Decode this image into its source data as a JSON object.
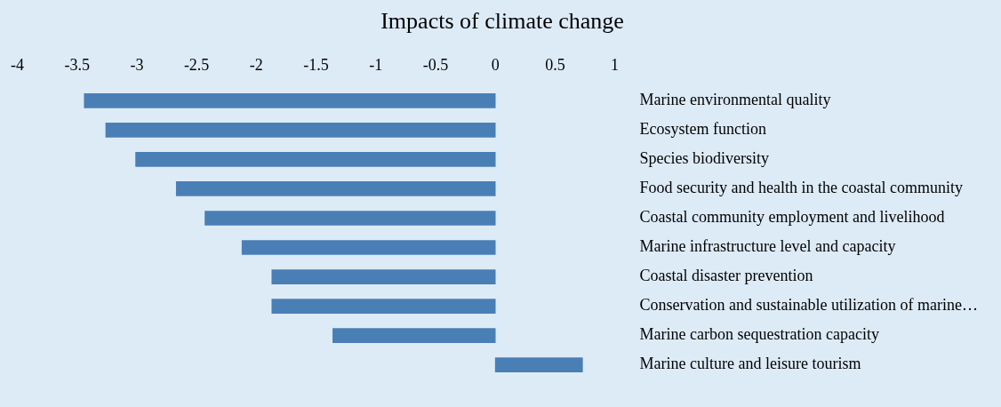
{
  "chart_data": {
    "type": "bar",
    "orientation": "horizontal",
    "title": "Impacts of climate change",
    "categories": [
      "Marine environmental quality",
      "Ecosystem function",
      "Species biodiversity",
      "Food security and health in the coastal community",
      "Coastal community employment and livelihood",
      "Marine infrastructure level and capacity",
      "Coastal disaster prevention",
      "Conservation and sustainable utilization of marine…",
      "Marine carbon sequestration capacity",
      "Marine culture and leisure tourism"
    ],
    "values": [
      -3.44,
      -3.26,
      -3.01,
      -2.67,
      -2.43,
      -2.12,
      -1.87,
      -1.87,
      -1.36,
      0.73
    ],
    "color": "#4a7fb6",
    "xlim": [
      -4,
      1
    ],
    "xticks": [
      -4,
      -3.5,
      -3,
      -2.5,
      -2,
      -1.5,
      -1,
      -0.5,
      0,
      0.5,
      1
    ],
    "grid": false,
    "legend": false
  }
}
